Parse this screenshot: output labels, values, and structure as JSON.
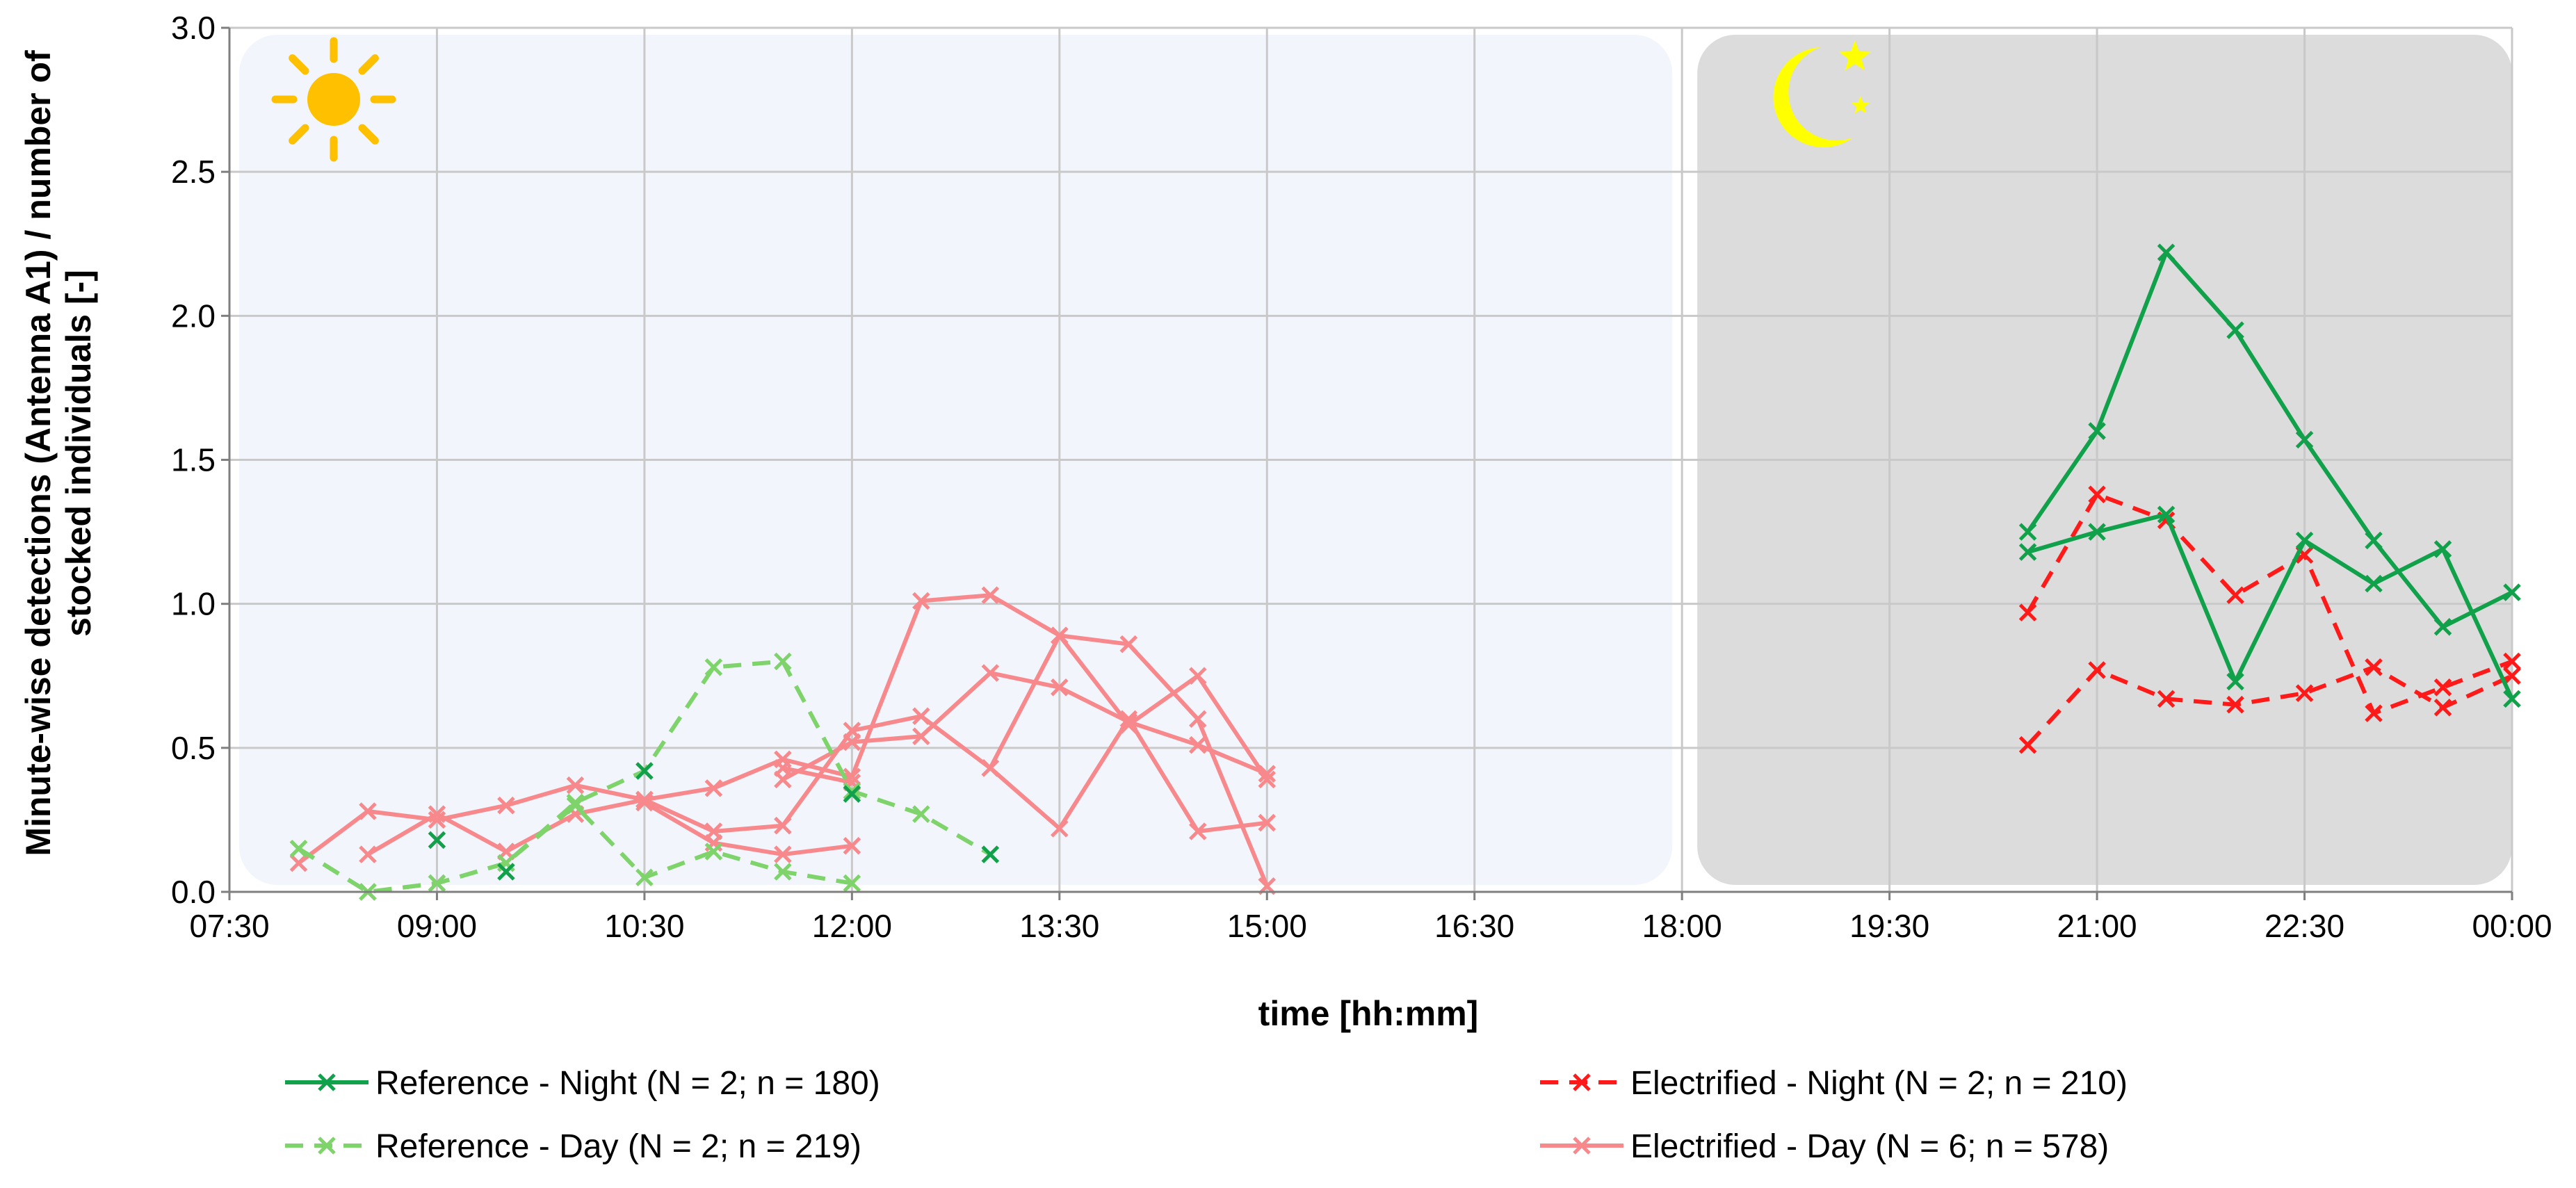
{
  "chart_data": {
    "type": "line",
    "title": "",
    "xlabel": "time [hh:mm]",
    "ylabel_lines": [
      "Minute-wise detections (Antenna A1) / number of",
      "stocked individuals [-]"
    ],
    "xlim": [
      "07:30",
      "00:00"
    ],
    "ylim": [
      0,
      3
    ],
    "x_ticks": [
      "07:30",
      "09:00",
      "10:30",
      "12:00",
      "13:30",
      "15:00",
      "16:30",
      "18:00",
      "19:30",
      "21:00",
      "22:30",
      "00:00"
    ],
    "y_ticks": [
      "0.0",
      "0.5",
      "1.0",
      "1.5",
      "2.0",
      "2.5",
      "3.0"
    ],
    "grid": true,
    "legend_position": "bottom",
    "day_period": [
      "07:30",
      "18:00"
    ],
    "night_period": [
      "18:00",
      "00:00"
    ],
    "colors": {
      "reference_night": "#12a14b",
      "reference_day": "#7ed36b",
      "electrified_night": "#ff1a1a",
      "electrified_day": "#f7898d",
      "day_background": "#f2f5fb",
      "night_background": "#dcdcdc",
      "sun": "#ffc000",
      "moon": "#ffff00"
    },
    "icons": [
      "sun-icon",
      "moon-and-stars-icon"
    ],
    "series_groups": [
      {
        "name": "Reference - Night (N = 2; n = 180)",
        "style": "solid",
        "color": "#12a14b",
        "lines": [
          [
            [
              "20:30",
              1.25
            ],
            [
              "21:00",
              1.6
            ],
            [
              "21:30",
              2.22
            ],
            [
              "22:00",
              1.95
            ],
            [
              "22:30",
              1.57
            ],
            [
              "23:00",
              1.22
            ],
            [
              "23:30",
              0.92
            ],
            [
              "00:00",
              1.04
            ]
          ],
          [
            [
              "20:30",
              1.18
            ],
            [
              "21:00",
              1.25
            ],
            [
              "21:30",
              1.31
            ],
            [
              "22:00",
              0.73
            ],
            [
              "22:30",
              1.22
            ],
            [
              "23:00",
              1.07
            ],
            [
              "23:30",
              1.19
            ],
            [
              "00:00",
              0.67
            ]
          ]
        ]
      },
      {
        "name": "Reference - Day (N = 2; n = 219)",
        "style": "dashed",
        "color": "#7ed36b",
        "lines": [
          [
            [
              "08:00",
              0.15
            ],
            [
              "08:30",
              0.0
            ],
            [
              "09:00",
              0.03
            ],
            [
              "09:30",
              0.1
            ],
            [
              "10:00",
              0.31
            ],
            [
              "10:30",
              0.42
            ],
            [
              "11:00",
              0.78
            ],
            [
              "11:30",
              0.8
            ],
            [
              "12:00",
              0.35
            ],
            [
              "12:30",
              0.27
            ],
            [
              "13:00",
              0.13
            ]
          ],
          [
            [
              "08:00",
              0.15
            ],
            [
              "08:30",
              0.0
            ],
            [
              "09:00",
              0.03
            ],
            [
              "09:30",
              0.1
            ],
            [
              "10:00",
              0.3
            ],
            [
              "10:30",
              0.05
            ],
            [
              "11:00",
              0.14
            ],
            [
              "11:30",
              0.07
            ],
            [
              "12:00",
              0.03
            ]
          ]
        ],
        "markers_only": [
          [
            [
              "09:00",
              0.18
            ],
            [
              "09:30",
              0.07
            ],
            [
              "10:30",
              0.42
            ],
            [
              "12:00",
              0.34
            ],
            [
              "13:00",
              0.13
            ]
          ]
        ]
      },
      {
        "name": "Electrified - Night (N = 2; n = 210)",
        "style": "dashed",
        "color": "#ff1a1a",
        "lines": [
          [
            [
              "20:30",
              0.97
            ],
            [
              "21:00",
              1.38
            ],
            [
              "21:30",
              1.29
            ],
            [
              "22:00",
              1.03
            ],
            [
              "22:30",
              1.17
            ],
            [
              "23:00",
              0.62
            ],
            [
              "23:30",
              0.71
            ],
            [
              "00:00",
              0.8
            ]
          ],
          [
            [
              "20:30",
              0.51
            ],
            [
              "21:00",
              0.77
            ],
            [
              "21:30",
              0.67
            ],
            [
              "22:00",
              0.65
            ],
            [
              "22:30",
              0.69
            ],
            [
              "23:00",
              0.78
            ],
            [
              "23:30",
              0.64
            ],
            [
              "00:00",
              0.75
            ]
          ]
        ]
      },
      {
        "name": "Electrified - Day (N = 6; n = 578)",
        "style": "solid",
        "color": "#f7898d",
        "lines": [
          [
            [
              "08:00",
              0.1
            ],
            [
              "08:30",
              0.28
            ],
            [
              "09:00",
              0.25
            ],
            [
              "09:30",
              0.3
            ],
            [
              "10:00",
              0.37
            ],
            [
              "10:30",
              0.32
            ],
            [
              "11:00",
              0.36
            ],
            [
              "11:30",
              0.46
            ],
            [
              "12:00",
              0.4
            ],
            [
              "12:30",
              1.01
            ],
            [
              "13:00",
              1.03
            ],
            [
              "13:30",
              0.89
            ],
            [
              "14:00",
              0.86
            ],
            [
              "14:30",
              0.6
            ],
            [
              "15:00",
              0.02
            ]
          ],
          [
            [
              "08:30",
              0.13
            ],
            [
              "09:00",
              0.27
            ],
            [
              "09:30",
              0.14
            ],
            [
              "10:00",
              0.27
            ],
            [
              "10:30",
              0.32
            ],
            [
              "11:00",
              0.21
            ],
            [
              "11:30",
              0.23
            ],
            [
              "12:00",
              0.56
            ],
            [
              "12:30",
              0.61
            ],
            [
              "13:00",
              0.43
            ],
            [
              "13:30",
              0.89
            ],
            [
              "14:00",
              0.58
            ],
            [
              "14:30",
              0.75
            ],
            [
              "15:00",
              0.39
            ]
          ],
          [
            [
              "10:30",
              0.31
            ],
            [
              "11:00",
              0.17
            ],
            [
              "11:30",
              0.13
            ],
            [
              "12:00",
              0.16
            ]
          ],
          [
            [
              "11:30",
              0.39
            ],
            [
              "12:00",
              0.52
            ],
            [
              "12:30",
              0.54
            ],
            [
              "13:00",
              0.76
            ],
            [
              "13:30",
              0.71
            ],
            [
              "14:00",
              0.59
            ],
            [
              "14:30",
              0.51
            ],
            [
              "15:00",
              0.41
            ]
          ],
          [
            [
              "11:30",
              0.43
            ],
            [
              "12:00",
              0.38
            ]
          ],
          [
            [
              "13:00",
              0.43
            ],
            [
              "13:30",
              0.22
            ],
            [
              "14:00",
              0.6
            ],
            [
              "14:30",
              0.21
            ],
            [
              "15:00",
              0.24
            ]
          ]
        ]
      }
    ]
  }
}
